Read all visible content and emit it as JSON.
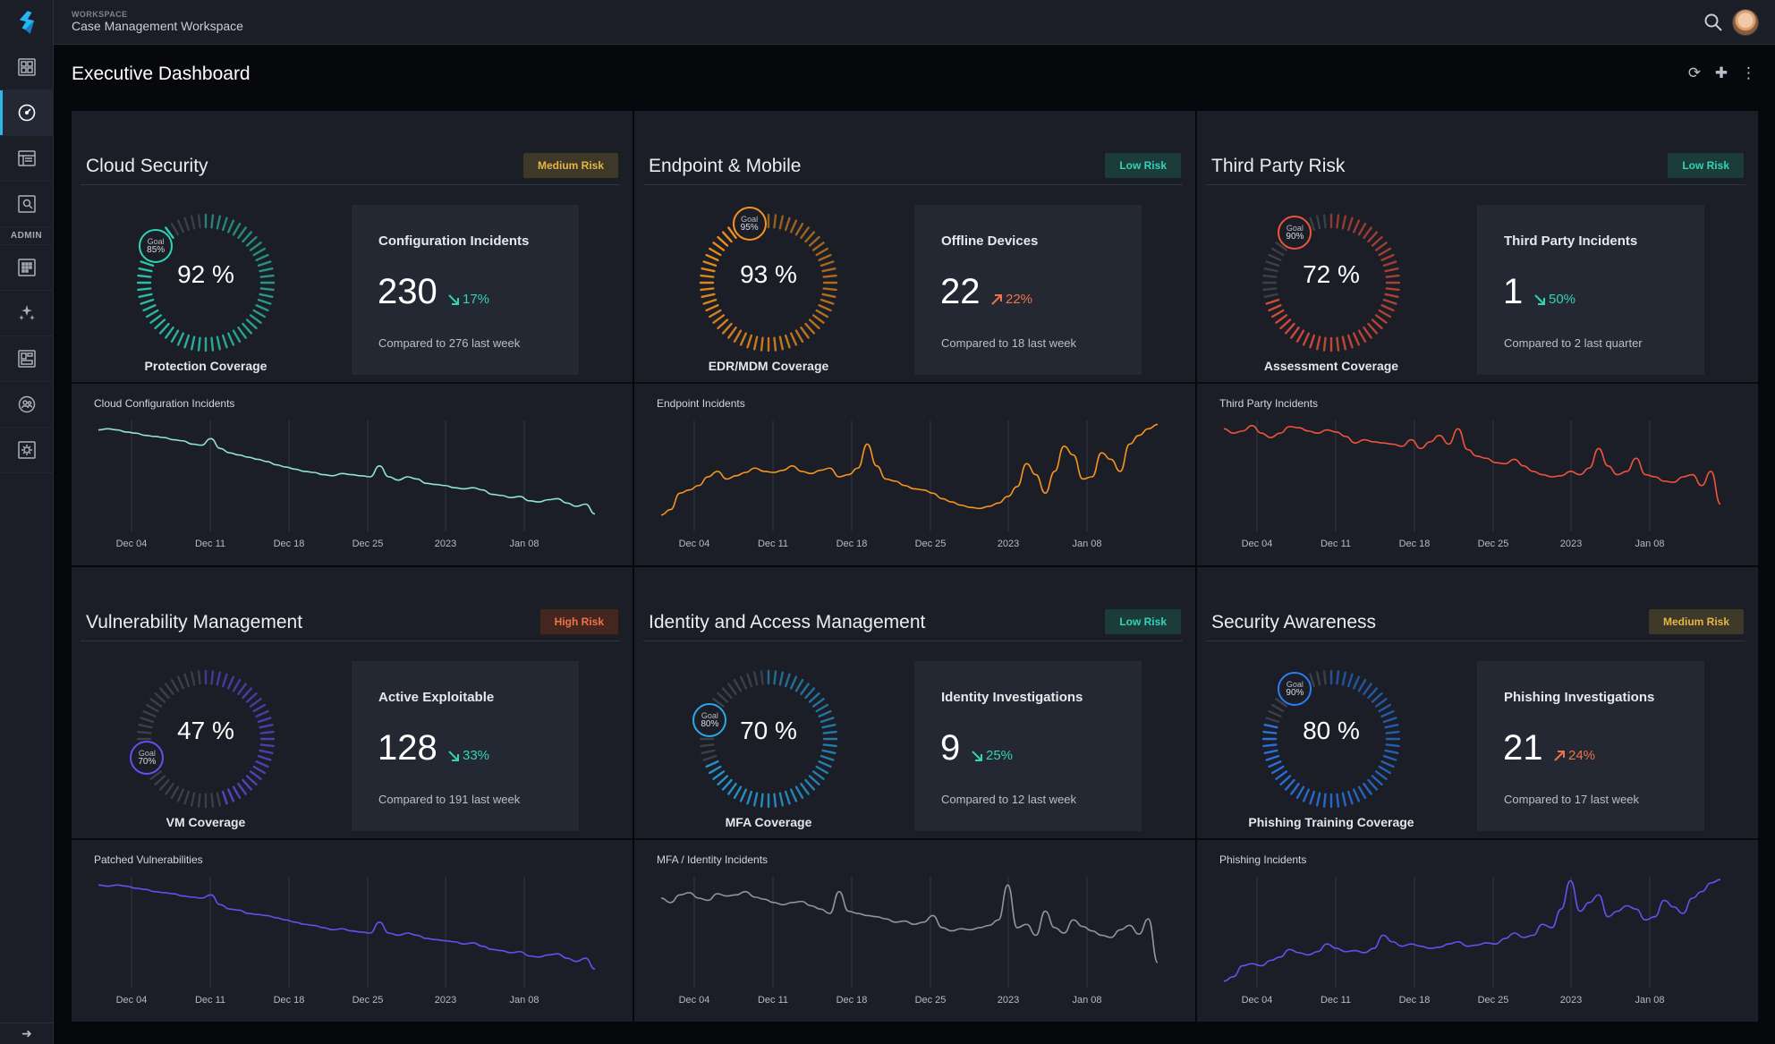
{
  "workspace": {
    "kicker": "WORKSPACE",
    "name": "Case Management Workspace"
  },
  "sidebar": {
    "admin_label": "ADMIN",
    "items": [
      "dashboards",
      "executive-dashboard",
      "reports",
      "investigations",
      "admin-apps",
      "automations",
      "layouts",
      "users",
      "settings"
    ],
    "active": "executive-dashboard"
  },
  "page": {
    "title": "Executive Dashboard"
  },
  "accents": {
    "teal": "#2ed3b7",
    "orange": "#f7931e",
    "coral": "#f0533a",
    "purple": "#6b4df0",
    "cyan": "#2aa8e8",
    "blue": "#2b7df3",
    "grey": "#8f959f"
  },
  "panels": [
    {
      "key": "cloud",
      "title": "Cloud Security",
      "risk": "Medium Risk",
      "risk_level": "medium",
      "gauge": {
        "value": 92,
        "value_label": "92 %",
        "goal": 85,
        "goal_text": [
          "Goal",
          "85%"
        ],
        "label": "Protection Coverage",
        "color": "#2ed3b7"
      },
      "stat": {
        "title": "Configuration Incidents",
        "value": "230",
        "trend": "17%",
        "direction": "down",
        "compare": "Compared to 276 last week"
      },
      "chart": {
        "title": "Cloud Configuration Incidents",
        "color": "#8fe3d3"
      }
    },
    {
      "key": "endpoint",
      "title": "Endpoint & Mobile",
      "risk": "Low Risk",
      "risk_level": "low",
      "gauge": {
        "value": 93,
        "value_label": "93 %",
        "goal": 95,
        "goal_text": [
          "Goal",
          "95%"
        ],
        "label": "EDR/MDM Coverage",
        "color": "#f7931e"
      },
      "stat": {
        "title": "Offline Devices",
        "value": "22",
        "trend": "22%",
        "direction": "up",
        "compare": "Compared to 18 last week"
      },
      "chart": {
        "title": "Endpoint Incidents",
        "color": "#f7931e"
      }
    },
    {
      "key": "thirdparty",
      "title": "Third Party Risk",
      "risk": "Low Risk",
      "risk_level": "low",
      "gauge": {
        "value": 72,
        "value_label": "72 %",
        "goal": 90,
        "goal_text": [
          "Goal",
          "90%"
        ],
        "label": "Assessment Coverage",
        "color": "#f0533a"
      },
      "stat": {
        "title": "Third Party Incidents",
        "value": "1",
        "trend": "50%",
        "direction": "down",
        "compare": "Compared to 2 last quarter"
      },
      "chart": {
        "title": "Third Party Incidents",
        "color": "#f0533a"
      }
    },
    {
      "key": "vuln",
      "title": "Vulnerability Management",
      "risk": "High Risk",
      "risk_level": "high",
      "gauge": {
        "value": 47,
        "value_label": "47 %",
        "goal": 70,
        "goal_text": [
          "Goal",
          "70%"
        ],
        "label": "VM Coverage",
        "color": "#6b4df0"
      },
      "stat": {
        "title": "Active Exploitable",
        "value": "128",
        "trend": "33%",
        "direction": "down",
        "compare": "Compared to 191 last week"
      },
      "chart": {
        "title": "Patched Vulnerabilities",
        "color": "#6b4df0"
      }
    },
    {
      "key": "iam",
      "title": "Identity and Access Management",
      "risk": "Low Risk",
      "risk_level": "low",
      "gauge": {
        "value": 70,
        "value_label": "70 %",
        "goal": 80,
        "goal_text": [
          "Goal",
          "80%"
        ],
        "label": "MFA Coverage",
        "color": "#2aa8e8"
      },
      "stat": {
        "title": "Identity Investigations",
        "value": "9",
        "trend": "25%",
        "direction": "down",
        "compare": "Compared to 12 last week"
      },
      "chart": {
        "title": "MFA / Identity Incidents",
        "color": "#8f959f"
      }
    },
    {
      "key": "awareness",
      "title": "Security Awareness",
      "risk": "Medium Risk",
      "risk_level": "medium",
      "gauge": {
        "value": 80,
        "value_label": "80 %",
        "goal": 90,
        "goal_text": [
          "Goal",
          "90%"
        ],
        "label": "Phishing Training Coverage",
        "color": "#2b7df3"
      },
      "stat": {
        "title": "Phishing Investigations",
        "value": "21",
        "trend": "24%",
        "direction": "up",
        "compare": "Compared to 17 last week"
      },
      "chart": {
        "title": "Phishing Incidents",
        "color": "#6b4df0"
      }
    }
  ],
  "x_ticks": [
    "Dec 04",
    "Dec 11",
    "Dec 18",
    "Dec 25",
    "2023",
    "Jan 08"
  ],
  "series": {
    "cloud": [
      0.93,
      0.94,
      0.93,
      0.91,
      0.9,
      0.88,
      0.87,
      0.86,
      0.84,
      0.83,
      0.8,
      0.79,
      0.85,
      0.76,
      0.72,
      0.7,
      0.68,
      0.66,
      0.64,
      0.61,
      0.59,
      0.57,
      0.55,
      0.54,
      0.52,
      0.51,
      0.53,
      0.52,
      0.51,
      0.5,
      0.6,
      0.5,
      0.47,
      0.5,
      0.48,
      0.44,
      0.43,
      0.42,
      0.4,
      0.39,
      0.4,
      0.38,
      0.34,
      0.33,
      0.31,
      0.32,
      0.28,
      0.27,
      0.29,
      0.3,
      0.26,
      0.23,
      0.25,
      0.16
    ],
    "endpoint": [
      0.15,
      0.2,
      0.35,
      0.38,
      0.42,
      0.5,
      0.55,
      0.48,
      0.51,
      0.54,
      0.58,
      0.55,
      0.54,
      0.56,
      0.6,
      0.55,
      0.53,
      0.56,
      0.58,
      0.5,
      0.52,
      0.58,
      0.8,
      0.6,
      0.48,
      0.46,
      0.42,
      0.39,
      0.38,
      0.35,
      0.3,
      0.27,
      0.24,
      0.22,
      0.21,
      0.23,
      0.26,
      0.32,
      0.41,
      0.62,
      0.52,
      0.35,
      0.55,
      0.78,
      0.7,
      0.48,
      0.5,
      0.72,
      0.66,
      0.55,
      0.8,
      0.88,
      0.94,
      0.98
    ],
    "thirdparty": [
      0.94,
      0.9,
      0.92,
      0.97,
      0.9,
      0.86,
      0.9,
      0.96,
      0.95,
      0.92,
      0.9,
      0.93,
      0.91,
      0.87,
      0.81,
      0.84,
      0.82,
      0.81,
      0.8,
      0.78,
      0.84,
      0.76,
      0.82,
      0.88,
      0.8,
      0.94,
      0.75,
      0.69,
      0.67,
      0.63,
      0.62,
      0.66,
      0.6,
      0.55,
      0.52,
      0.5,
      0.51,
      0.55,
      0.52,
      0.58,
      0.76,
      0.6,
      0.52,
      0.55,
      0.67,
      0.52,
      0.5,
      0.46,
      0.45,
      0.5,
      0.52,
      0.42,
      0.55,
      0.25
    ],
    "vuln": [
      0.94,
      0.93,
      0.94,
      0.93,
      0.91,
      0.9,
      0.88,
      0.87,
      0.86,
      0.84,
      0.83,
      0.82,
      0.85,
      0.76,
      0.72,
      0.71,
      0.68,
      0.67,
      0.66,
      0.64,
      0.62,
      0.6,
      0.58,
      0.57,
      0.55,
      0.53,
      0.54,
      0.52,
      0.51,
      0.5,
      0.6,
      0.5,
      0.48,
      0.5,
      0.48,
      0.45,
      0.44,
      0.43,
      0.42,
      0.4,
      0.41,
      0.38,
      0.35,
      0.34,
      0.32,
      0.33,
      0.29,
      0.28,
      0.3,
      0.31,
      0.27,
      0.24,
      0.27,
      0.17
    ],
    "iam": [
      0.82,
      0.78,
      0.85,
      0.87,
      0.82,
      0.8,
      0.86,
      0.84,
      0.85,
      0.88,
      0.83,
      0.81,
      0.78,
      0.76,
      0.78,
      0.79,
      0.75,
      0.72,
      0.68,
      0.88,
      0.7,
      0.68,
      0.66,
      0.65,
      0.63,
      0.6,
      0.61,
      0.58,
      0.6,
      0.66,
      0.55,
      0.52,
      0.54,
      0.53,
      0.55,
      0.57,
      0.62,
      0.94,
      0.55,
      0.58,
      0.48,
      0.7,
      0.55,
      0.5,
      0.62,
      0.56,
      0.52,
      0.48,
      0.46,
      0.53,
      0.57,
      0.49,
      0.63,
      0.23
    ],
    "awareness": [
      0.06,
      0.1,
      0.2,
      0.22,
      0.2,
      0.25,
      0.28,
      0.35,
      0.32,
      0.3,
      0.33,
      0.4,
      0.36,
      0.33,
      0.34,
      0.32,
      0.36,
      0.48,
      0.42,
      0.38,
      0.4,
      0.38,
      0.36,
      0.37,
      0.4,
      0.42,
      0.38,
      0.39,
      0.41,
      0.4,
      0.45,
      0.5,
      0.46,
      0.48,
      0.58,
      0.55,
      0.72,
      0.98,
      0.7,
      0.78,
      0.85,
      0.65,
      0.7,
      0.75,
      0.72,
      0.62,
      0.65,
      0.8,
      0.74,
      0.68,
      0.82,
      0.88,
      0.96,
      0.99
    ]
  }
}
